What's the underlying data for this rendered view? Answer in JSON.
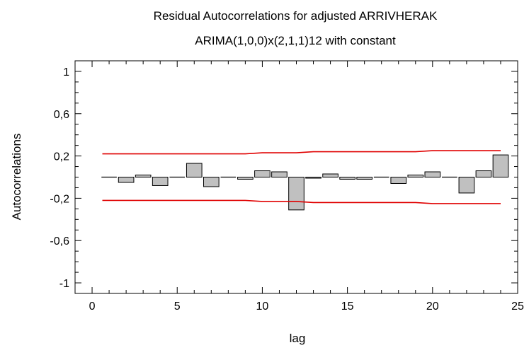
{
  "chart_data": {
    "type": "bar",
    "title": "Residual Autocorrelations for adjusted ARRIVHERAK",
    "subtitle": "ARIMA(1,0,0)x(2,1,1)12 with constant",
    "xlabel": "lag",
    "ylabel": "Autocorrelations",
    "xlim": [
      -1,
      25
    ],
    "ylim": [
      -1.1,
      1.1
    ],
    "x_ticks": [
      0,
      5,
      10,
      15,
      20,
      25
    ],
    "x_tick_labels": [
      "0",
      "5",
      "10",
      "15",
      "20",
      "25"
    ],
    "y_ticks": [
      1,
      0.6,
      0.2,
      -0.2,
      -0.6,
      -1
    ],
    "y_tick_labels": [
      "1",
      "0,6",
      "0,2",
      "-0,2",
      "-0,6",
      "-1"
    ],
    "grid": false,
    "bar_color": "#c0c0c0",
    "limit_color": "#e00000",
    "lags": [
      1,
      2,
      3,
      4,
      5,
      6,
      7,
      8,
      9,
      10,
      11,
      12,
      13,
      14,
      15,
      16,
      17,
      18,
      19,
      20,
      21,
      22,
      23,
      24
    ],
    "values": [
      0.0,
      -0.05,
      0.02,
      -0.08,
      0.0,
      0.13,
      -0.09,
      0.0,
      -0.02,
      0.06,
      0.05,
      -0.31,
      -0.01,
      0.03,
      -0.02,
      -0.02,
      0.0,
      -0.06,
      0.02,
      0.05,
      0.0,
      -0.15,
      0.06,
      0.21
    ],
    "upper_limit": {
      "x": [
        0.6,
        9,
        10,
        12,
        13,
        19,
        20,
        24
      ],
      "y": [
        0.22,
        0.22,
        0.23,
        0.23,
        0.24,
        0.24,
        0.25,
        0.25
      ]
    },
    "lower_limit": {
      "x": [
        0.6,
        9,
        10,
        12,
        13,
        19,
        20,
        24
      ],
      "y": [
        -0.22,
        -0.22,
        -0.23,
        -0.23,
        -0.24,
        -0.24,
        -0.25,
        -0.25
      ]
    }
  }
}
